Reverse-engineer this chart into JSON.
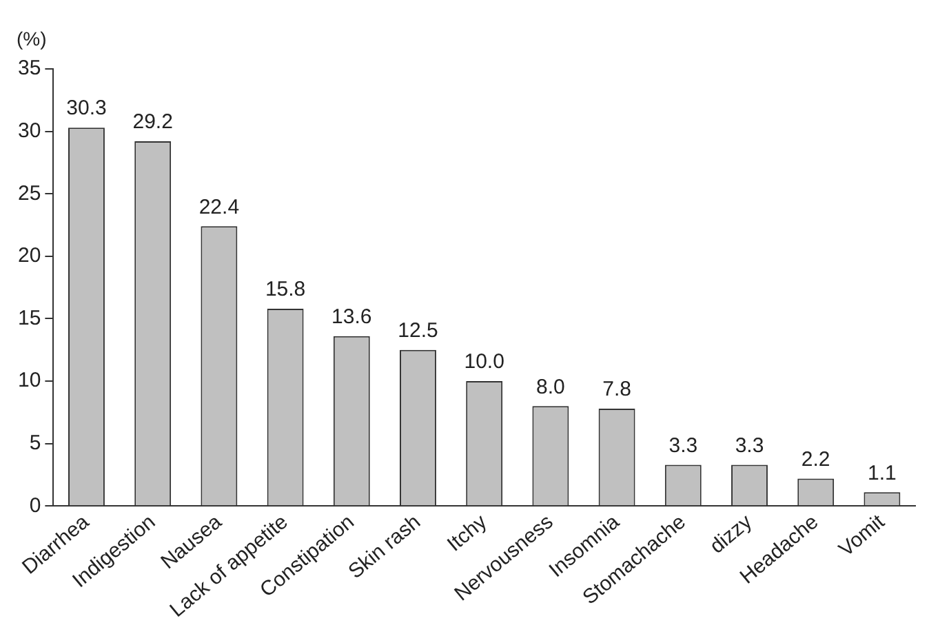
{
  "chart_data": {
    "type": "bar",
    "ylabel": "(%)",
    "categories": [
      "Diarrhea",
      "Indigestion",
      "Nausea",
      "Lack of appetite",
      "Constipation",
      "Skin rash",
      "Itchy",
      "Nervousness",
      "Insomnia",
      "Stomachache",
      "dizzy",
      "Headache",
      "Vomit"
    ],
    "values": [
      30.3,
      29.2,
      22.4,
      15.8,
      13.6,
      12.5,
      10.0,
      8.0,
      7.8,
      3.3,
      3.3,
      2.2,
      1.1
    ],
    "value_labels": [
      "30.3",
      "29.2",
      "22.4",
      "15.8",
      "13.6",
      "12.5",
      "10.0",
      "8.0",
      "7.8",
      "3.3",
      "3.3",
      "2.2",
      "1.1"
    ],
    "color": "#c0c0c0",
    "ylim": [
      0,
      35
    ],
    "yticks": [
      0,
      5,
      10,
      15,
      20,
      25,
      30,
      35
    ],
    "grid": false,
    "legend": false
  }
}
